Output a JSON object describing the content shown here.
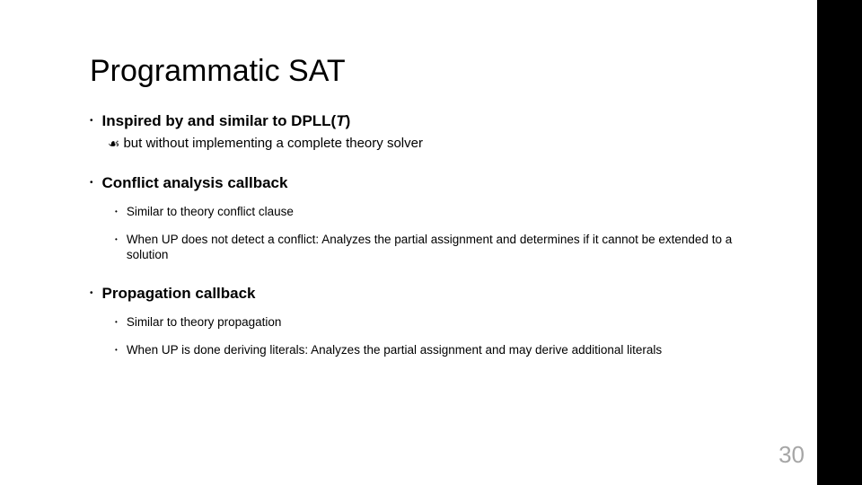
{
  "title": "Programmatic SAT",
  "bullets": {
    "b1_prefix": "Inspired by and similar to DPLL(",
    "b1_T": "T",
    "b1_suffix": ")",
    "b1_note": "but without implementing a complete theory solver",
    "b2": "Conflict analysis callback",
    "b2_sub1": "Similar to theory conflict clause",
    "b2_sub2": "When UP does not detect a conflict: Analyzes the partial assignment and determines if it cannot be extended to a solution",
    "b3": "Propagation callback",
    "b3_sub1": "Similar to theory propagation",
    "b3_sub2": "When UP is done deriving literals: Analyzes the partial assignment and may derive additional literals"
  },
  "page_number": "30",
  "colors": {
    "sidebar": "#000000",
    "background": "#ffffff",
    "text": "#000000",
    "pagenum": "#a6a6a6"
  }
}
